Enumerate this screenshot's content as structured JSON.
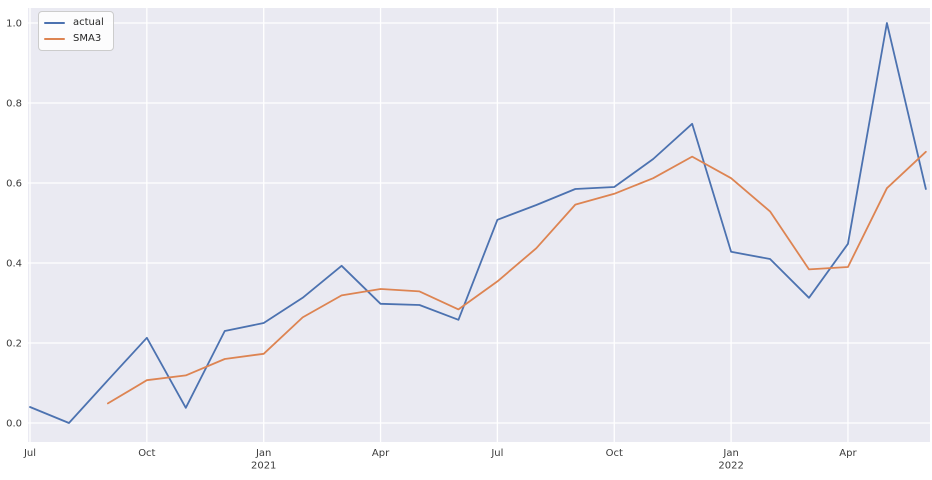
{
  "chart_data": {
    "type": "line",
    "title": "",
    "xlabel": "",
    "ylabel": "",
    "x_frequency": "monthly",
    "x": [
      "2020-07",
      "2020-08",
      "2020-09",
      "2020-10",
      "2020-11",
      "2020-12",
      "2021-01",
      "2021-02",
      "2021-03",
      "2021-04",
      "2021-05",
      "2021-06",
      "2021-07",
      "2021-08",
      "2021-09",
      "2021-10",
      "2021-11",
      "2021-12",
      "2022-01",
      "2022-02",
      "2022-03",
      "2022-04",
      "2022-05",
      "2022-06"
    ],
    "series": [
      {
        "name": "actual",
        "color": "#4C72B0",
        "values": [
          0.04,
          0.0,
          0.107,
          0.213,
          0.038,
          0.23,
          0.25,
          0.313,
          0.393,
          0.298,
          0.295,
          0.258,
          0.508,
          0.545,
          0.585,
          0.59,
          0.66,
          0.748,
          0.428,
          0.41,
          0.313,
          0.448,
          1.0,
          0.585
        ]
      },
      {
        "name": "SMA3",
        "color": "#DD8452",
        "values": [
          null,
          null,
          0.049,
          0.107,
          0.119,
          0.16,
          0.173,
          0.264,
          0.319,
          0.335,
          0.329,
          0.284,
          0.354,
          0.437,
          0.546,
          0.573,
          0.612,
          0.666,
          0.612,
          0.529,
          0.384,
          0.39,
          0.587,
          0.678
        ]
      }
    ],
    "ylim": [
      -0.048,
      1.038
    ],
    "yticks": [
      {
        "value": 0.0,
        "label": "0.0"
      },
      {
        "value": 0.2,
        "label": "0.2"
      },
      {
        "value": 0.4,
        "label": "0.4"
      },
      {
        "value": 0.6,
        "label": "0.6"
      },
      {
        "value": 0.8,
        "label": "0.8"
      },
      {
        "value": 1.0,
        "label": "1.0"
      }
    ],
    "xticks": [
      {
        "index": 0,
        "label": "Jul"
      },
      {
        "index": 3,
        "label": "Oct"
      },
      {
        "index": 6,
        "label": "Jan",
        "year": "2021"
      },
      {
        "index": 9,
        "label": "Apr"
      },
      {
        "index": 12,
        "label": "Jul"
      },
      {
        "index": 15,
        "label": "Oct"
      },
      {
        "index": 18,
        "label": "Jan",
        "year": "2022"
      },
      {
        "index": 21,
        "label": "Apr"
      }
    ],
    "legend": {
      "position": "upper-left"
    },
    "grid": true,
    "colors": {
      "plot_background": "#EAEAF2",
      "figure_background": "#FFFFFF",
      "grid_color": "#FFFFFF",
      "tick_label_color": "#3B3B3B",
      "legend_border": "#CCCCCC"
    }
  }
}
